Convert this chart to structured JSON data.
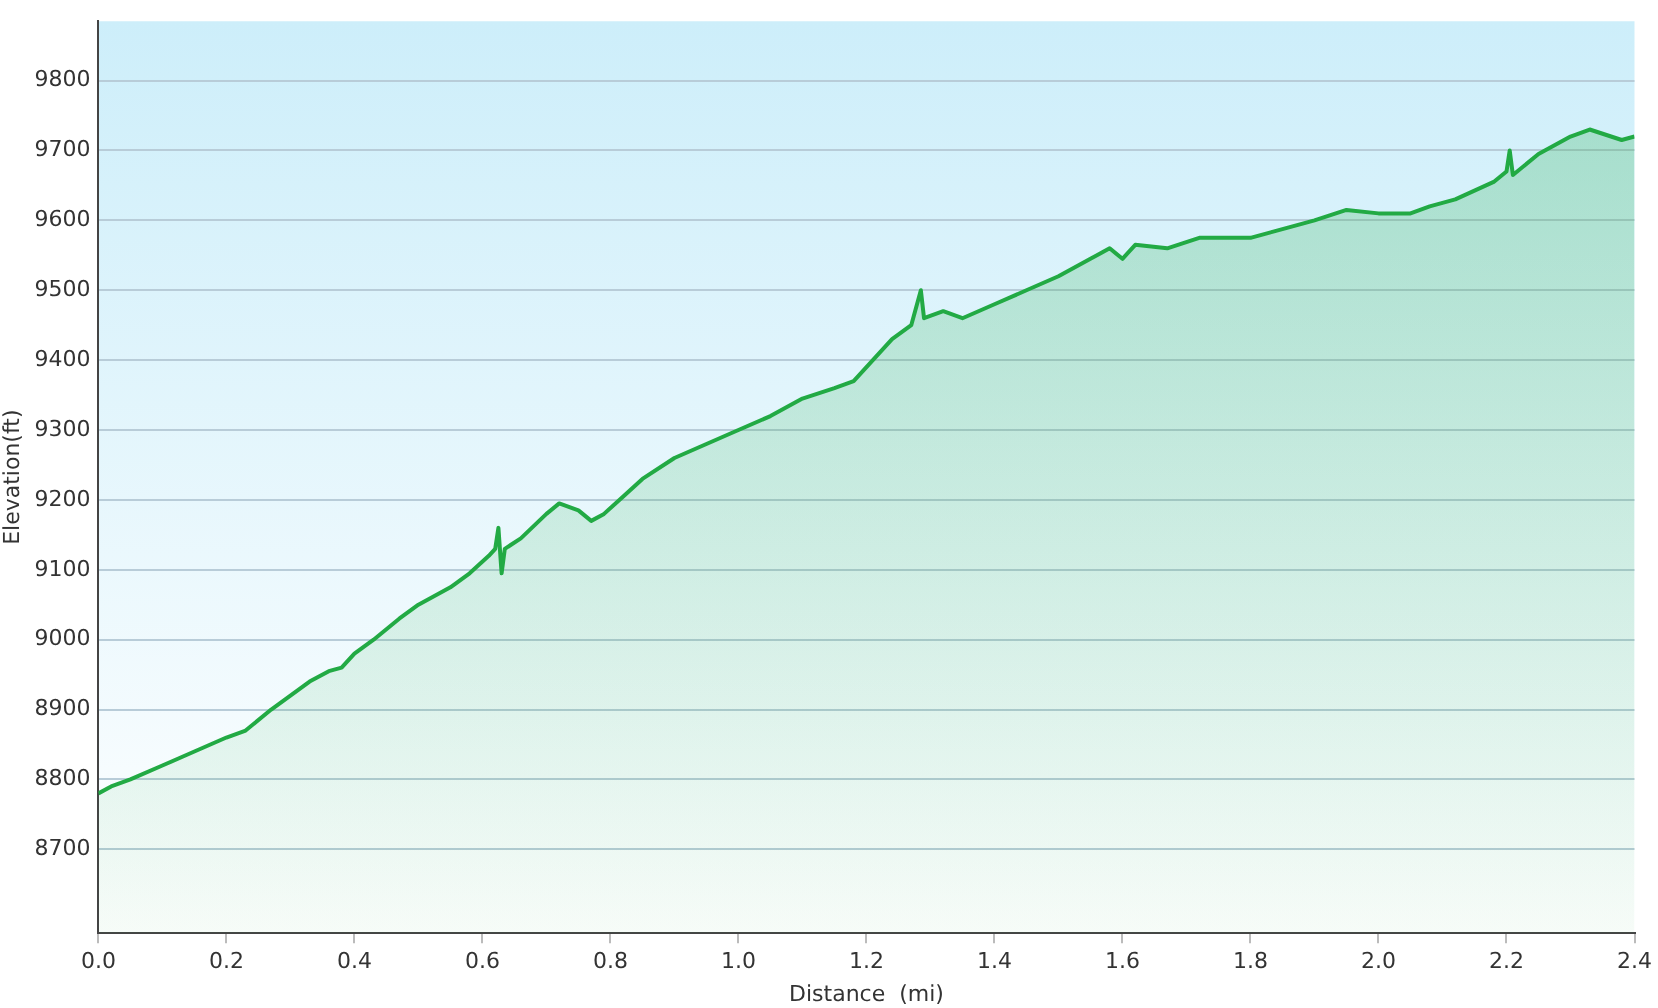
{
  "chart_data": {
    "type": "area",
    "xlabel": "Distance  (mi)",
    "ylabel": "Elevation(ft)",
    "xlim": [
      0,
      2.4
    ],
    "xticks": [
      {
        "value": 0,
        "label": "0.0"
      },
      0.2,
      0.4,
      0.6,
      0.8,
      {
        "value": 1,
        "label": "1.0"
      },
      1.2,
      1.4,
      1.6,
      1.8,
      {
        "value": 2,
        "label": "2.0"
      },
      2.2,
      2.4
    ],
    "ylim": [
      8580,
      9885
    ],
    "yticks": [
      8700,
      8800,
      8900,
      9000,
      9100,
      9200,
      9300,
      9400,
      9500,
      9600,
      9700,
      9800
    ],
    "grid": "y",
    "legend": false,
    "marker": "none",
    "line_style": "solid",
    "series": [
      {
        "color": "#22aa44",
        "x": [
          0,
          0.02,
          0.05,
          0.1,
          0.15,
          0.2,
          0.23,
          0.27,
          0.3,
          0.33,
          0.36,
          0.38,
          0.4,
          0.43,
          0.47,
          0.5,
          0.55,
          0.58,
          0.61,
          0.62,
          0.625,
          0.63,
          0.635,
          0.66,
          0.7,
          0.72,
          0.75,
          0.77,
          0.79,
          0.82,
          0.85,
          0.9,
          0.95,
          1,
          1.05,
          1.1,
          1.15,
          1.18,
          1.21,
          1.24,
          1.27,
          1.285,
          1.29,
          1.32,
          1.35,
          1.4,
          1.45,
          1.5,
          1.55,
          1.58,
          1.6,
          1.62,
          1.67,
          1.72,
          1.8,
          1.86,
          1.9,
          1.95,
          2,
          2.05,
          2.08,
          2.12,
          2.18,
          2.2,
          2.205,
          2.21,
          2.25,
          2.3,
          2.33,
          2.38,
          2.4
        ],
        "values": [
          8780,
          8790,
          8800,
          8820,
          8840,
          8860,
          8870,
          8900,
          8920,
          8940,
          8955,
          8960,
          8980,
          9000,
          9030,
          9050,
          9075,
          9095,
          9120,
          9130,
          9160,
          9095,
          9130,
          9145,
          9180,
          9195,
          9185,
          9170,
          9180,
          9205,
          9230,
          9260,
          9280,
          9300,
          9320,
          9345,
          9360,
          9370,
          9400,
          9430,
          9450,
          9500,
          9460,
          9470,
          9460,
          9480,
          9500,
          9520,
          9545,
          9560,
          9545,
          9565,
          9560,
          9575,
          9575,
          9590,
          9600,
          9615,
          9610,
          9610,
          9620,
          9630,
          9655,
          9670,
          9700,
          9665,
          9695,
          9720,
          9730,
          9715,
          9720
        ]
      }
    ]
  }
}
